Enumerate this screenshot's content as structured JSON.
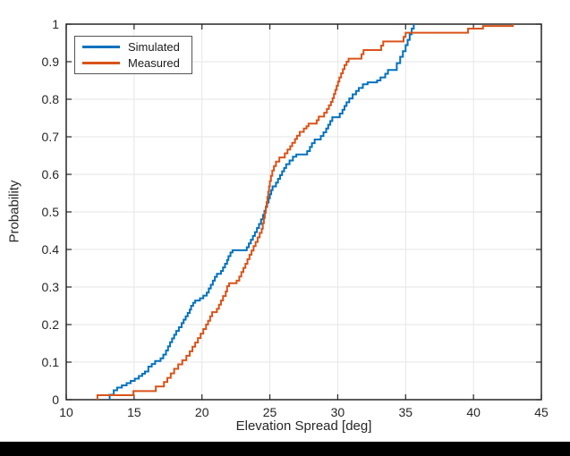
{
  "chart_data": {
    "type": "line",
    "subtype": "ecdf-step",
    "title": "",
    "xlabel": "Elevation Spread [deg]",
    "ylabel": "Probability",
    "xlim": [
      10,
      45
    ],
    "ylim": [
      0,
      1
    ],
    "grid": true,
    "legend_position": "top-left",
    "x_ticks": [
      10,
      15,
      20,
      25,
      30,
      35,
      40,
      45
    ],
    "x_tick_labels": [
      "10",
      "15",
      "20",
      "25",
      "30",
      "35",
      "40",
      "45"
    ],
    "y_ticks": [
      0,
      0.1,
      0.2,
      0.3,
      0.4,
      0.5,
      0.6,
      0.7,
      0.8,
      0.9,
      1
    ],
    "y_tick_labels": [
      "0",
      "0.1",
      "0.2",
      "0.3",
      "0.4",
      "0.5",
      "0.6",
      "0.7",
      "0.8",
      "0.9",
      "1"
    ],
    "axis_color": "#262626",
    "grid_color": "#e6e6e6",
    "series": [
      {
        "name": "Simulated",
        "color": "#0072BD",
        "points": [
          [
            13.2,
            0.013
          ],
          [
            13.5,
            0.025
          ],
          [
            13.75,
            0.032
          ],
          [
            14.1,
            0.038
          ],
          [
            14.45,
            0.044
          ],
          [
            14.75,
            0.05
          ],
          [
            15.05,
            0.056
          ],
          [
            15.35,
            0.063
          ],
          [
            15.6,
            0.069
          ],
          [
            15.8,
            0.075
          ],
          [
            16.05,
            0.088
          ],
          [
            16.3,
            0.095
          ],
          [
            16.55,
            0.103
          ],
          [
            16.95,
            0.11
          ],
          [
            17.15,
            0.12
          ],
          [
            17.35,
            0.131
          ],
          [
            17.5,
            0.142
          ],
          [
            17.65,
            0.153
          ],
          [
            17.8,
            0.163
          ],
          [
            17.95,
            0.173
          ],
          [
            18.1,
            0.183
          ],
          [
            18.3,
            0.193
          ],
          [
            18.5,
            0.204
          ],
          [
            18.65,
            0.213
          ],
          [
            18.8,
            0.222
          ],
          [
            18.95,
            0.231
          ],
          [
            19.1,
            0.24
          ],
          [
            19.2,
            0.25
          ],
          [
            19.35,
            0.258
          ],
          [
            19.5,
            0.264
          ],
          [
            19.85,
            0.27
          ],
          [
            20.1,
            0.277
          ],
          [
            20.35,
            0.285
          ],
          [
            20.5,
            0.296
          ],
          [
            20.65,
            0.306
          ],
          [
            20.8,
            0.317
          ],
          [
            20.95,
            0.327
          ],
          [
            21.1,
            0.335
          ],
          [
            21.4,
            0.343
          ],
          [
            21.55,
            0.352
          ],
          [
            21.7,
            0.362
          ],
          [
            21.85,
            0.372
          ],
          [
            21.95,
            0.382
          ],
          [
            22.1,
            0.392
          ],
          [
            22.25,
            0.398
          ],
          [
            23.3,
            0.406
          ],
          [
            23.45,
            0.416
          ],
          [
            23.6,
            0.426
          ],
          [
            23.75,
            0.436
          ],
          [
            23.9,
            0.446
          ],
          [
            24.05,
            0.457
          ],
          [
            24.2,
            0.468
          ],
          [
            24.35,
            0.48
          ],
          [
            24.5,
            0.492
          ],
          [
            24.6,
            0.503
          ],
          [
            24.7,
            0.514
          ],
          [
            24.8,
            0.525
          ],
          [
            24.9,
            0.536
          ],
          [
            25.0,
            0.547
          ],
          [
            25.1,
            0.558
          ],
          [
            25.2,
            0.568
          ],
          [
            25.45,
            0.578
          ],
          [
            25.6,
            0.588
          ],
          [
            25.75,
            0.598
          ],
          [
            25.9,
            0.608
          ],
          [
            26.05,
            0.617
          ],
          [
            26.2,
            0.627
          ],
          [
            26.45,
            0.637
          ],
          [
            26.7,
            0.647
          ],
          [
            26.95,
            0.653
          ],
          [
            27.75,
            0.662
          ],
          [
            27.95,
            0.673
          ],
          [
            28.1,
            0.683
          ],
          [
            28.3,
            0.693
          ],
          [
            28.75,
            0.702
          ],
          [
            28.95,
            0.712
          ],
          [
            29.15,
            0.722
          ],
          [
            29.3,
            0.732
          ],
          [
            29.45,
            0.742
          ],
          [
            29.6,
            0.752
          ],
          [
            30.15,
            0.762
          ],
          [
            30.35,
            0.772
          ],
          [
            30.5,
            0.782
          ],
          [
            30.65,
            0.792
          ],
          [
            30.85,
            0.802
          ],
          [
            31.1,
            0.813
          ],
          [
            31.35,
            0.822
          ],
          [
            31.55,
            0.83
          ],
          [
            31.85,
            0.84
          ],
          [
            32.2,
            0.845
          ],
          [
            32.9,
            0.85
          ],
          [
            33.15,
            0.858
          ],
          [
            33.5,
            0.868
          ],
          [
            33.7,
            0.878
          ],
          [
            34.35,
            0.896
          ],
          [
            34.6,
            0.913
          ],
          [
            34.8,
            0.928
          ],
          [
            35.0,
            0.944
          ],
          [
            35.15,
            0.958
          ],
          [
            35.3,
            0.973
          ],
          [
            35.45,
            0.988
          ],
          [
            35.6,
            1.0
          ]
        ]
      },
      {
        "name": "Measured",
        "color": "#D95319",
        "points": [
          [
            12.3,
            0.012
          ],
          [
            14.95,
            0.023
          ],
          [
            16.6,
            0.035
          ],
          [
            17.2,
            0.047
          ],
          [
            17.45,
            0.058
          ],
          [
            17.7,
            0.07
          ],
          [
            17.95,
            0.082
          ],
          [
            18.25,
            0.094
          ],
          [
            18.55,
            0.105
          ],
          [
            18.85,
            0.117
          ],
          [
            19.1,
            0.129
          ],
          [
            19.3,
            0.141
          ],
          [
            19.5,
            0.152
          ],
          [
            19.7,
            0.164
          ],
          [
            19.9,
            0.176
          ],
          [
            20.1,
            0.188
          ],
          [
            20.3,
            0.2
          ],
          [
            20.45,
            0.21
          ],
          [
            20.6,
            0.222
          ],
          [
            20.75,
            0.233
          ],
          [
            21.1,
            0.242
          ],
          [
            21.25,
            0.253
          ],
          [
            21.4,
            0.264
          ],
          [
            21.55,
            0.276
          ],
          [
            21.75,
            0.288
          ],
          [
            21.85,
            0.302
          ],
          [
            22.0,
            0.31
          ],
          [
            22.55,
            0.317
          ],
          [
            22.75,
            0.328
          ],
          [
            22.9,
            0.34
          ],
          [
            23.05,
            0.351
          ],
          [
            23.2,
            0.362
          ],
          [
            23.35,
            0.374
          ],
          [
            23.5,
            0.386
          ],
          [
            23.65,
            0.397
          ],
          [
            23.8,
            0.409
          ],
          [
            23.95,
            0.42
          ],
          [
            24.1,
            0.432
          ],
          [
            24.25,
            0.444
          ],
          [
            24.4,
            0.455
          ],
          [
            24.48,
            0.47
          ],
          [
            24.56,
            0.484
          ],
          [
            24.63,
            0.498
          ],
          [
            24.7,
            0.512
          ],
          [
            24.76,
            0.526
          ],
          [
            24.82,
            0.54
          ],
          [
            24.88,
            0.554
          ],
          [
            24.94,
            0.568
          ],
          [
            25.0,
            0.582
          ],
          [
            25.08,
            0.596
          ],
          [
            25.18,
            0.61
          ],
          [
            25.3,
            0.622
          ],
          [
            25.45,
            0.634
          ],
          [
            25.7,
            0.645
          ],
          [
            26.1,
            0.656
          ],
          [
            26.3,
            0.666
          ],
          [
            26.5,
            0.675
          ],
          [
            26.65,
            0.684
          ],
          [
            26.85,
            0.694
          ],
          [
            27.0,
            0.703
          ],
          [
            27.2,
            0.713
          ],
          [
            27.5,
            0.722
          ],
          [
            27.7,
            0.728
          ],
          [
            27.85,
            0.735
          ],
          [
            28.45,
            0.744
          ],
          [
            28.6,
            0.754
          ],
          [
            29.0,
            0.764
          ],
          [
            29.2,
            0.774
          ],
          [
            29.35,
            0.784
          ],
          [
            29.5,
            0.793
          ],
          [
            29.62,
            0.803
          ],
          [
            29.72,
            0.814
          ],
          [
            29.82,
            0.825
          ],
          [
            29.92,
            0.836
          ],
          [
            30.02,
            0.847
          ],
          [
            30.12,
            0.858
          ],
          [
            30.25,
            0.869
          ],
          [
            30.38,
            0.88
          ],
          [
            30.5,
            0.891
          ],
          [
            30.65,
            0.9
          ],
          [
            30.8,
            0.908
          ],
          [
            31.75,
            0.92
          ],
          [
            31.9,
            0.931
          ],
          [
            33.2,
            0.943
          ],
          [
            33.35,
            0.954
          ],
          [
            34.85,
            0.966
          ],
          [
            35.0,
            0.977
          ],
          [
            39.6,
            0.988
          ],
          [
            40.7,
            0.995
          ],
          [
            42.9,
            1.0
          ]
        ]
      }
    ]
  }
}
